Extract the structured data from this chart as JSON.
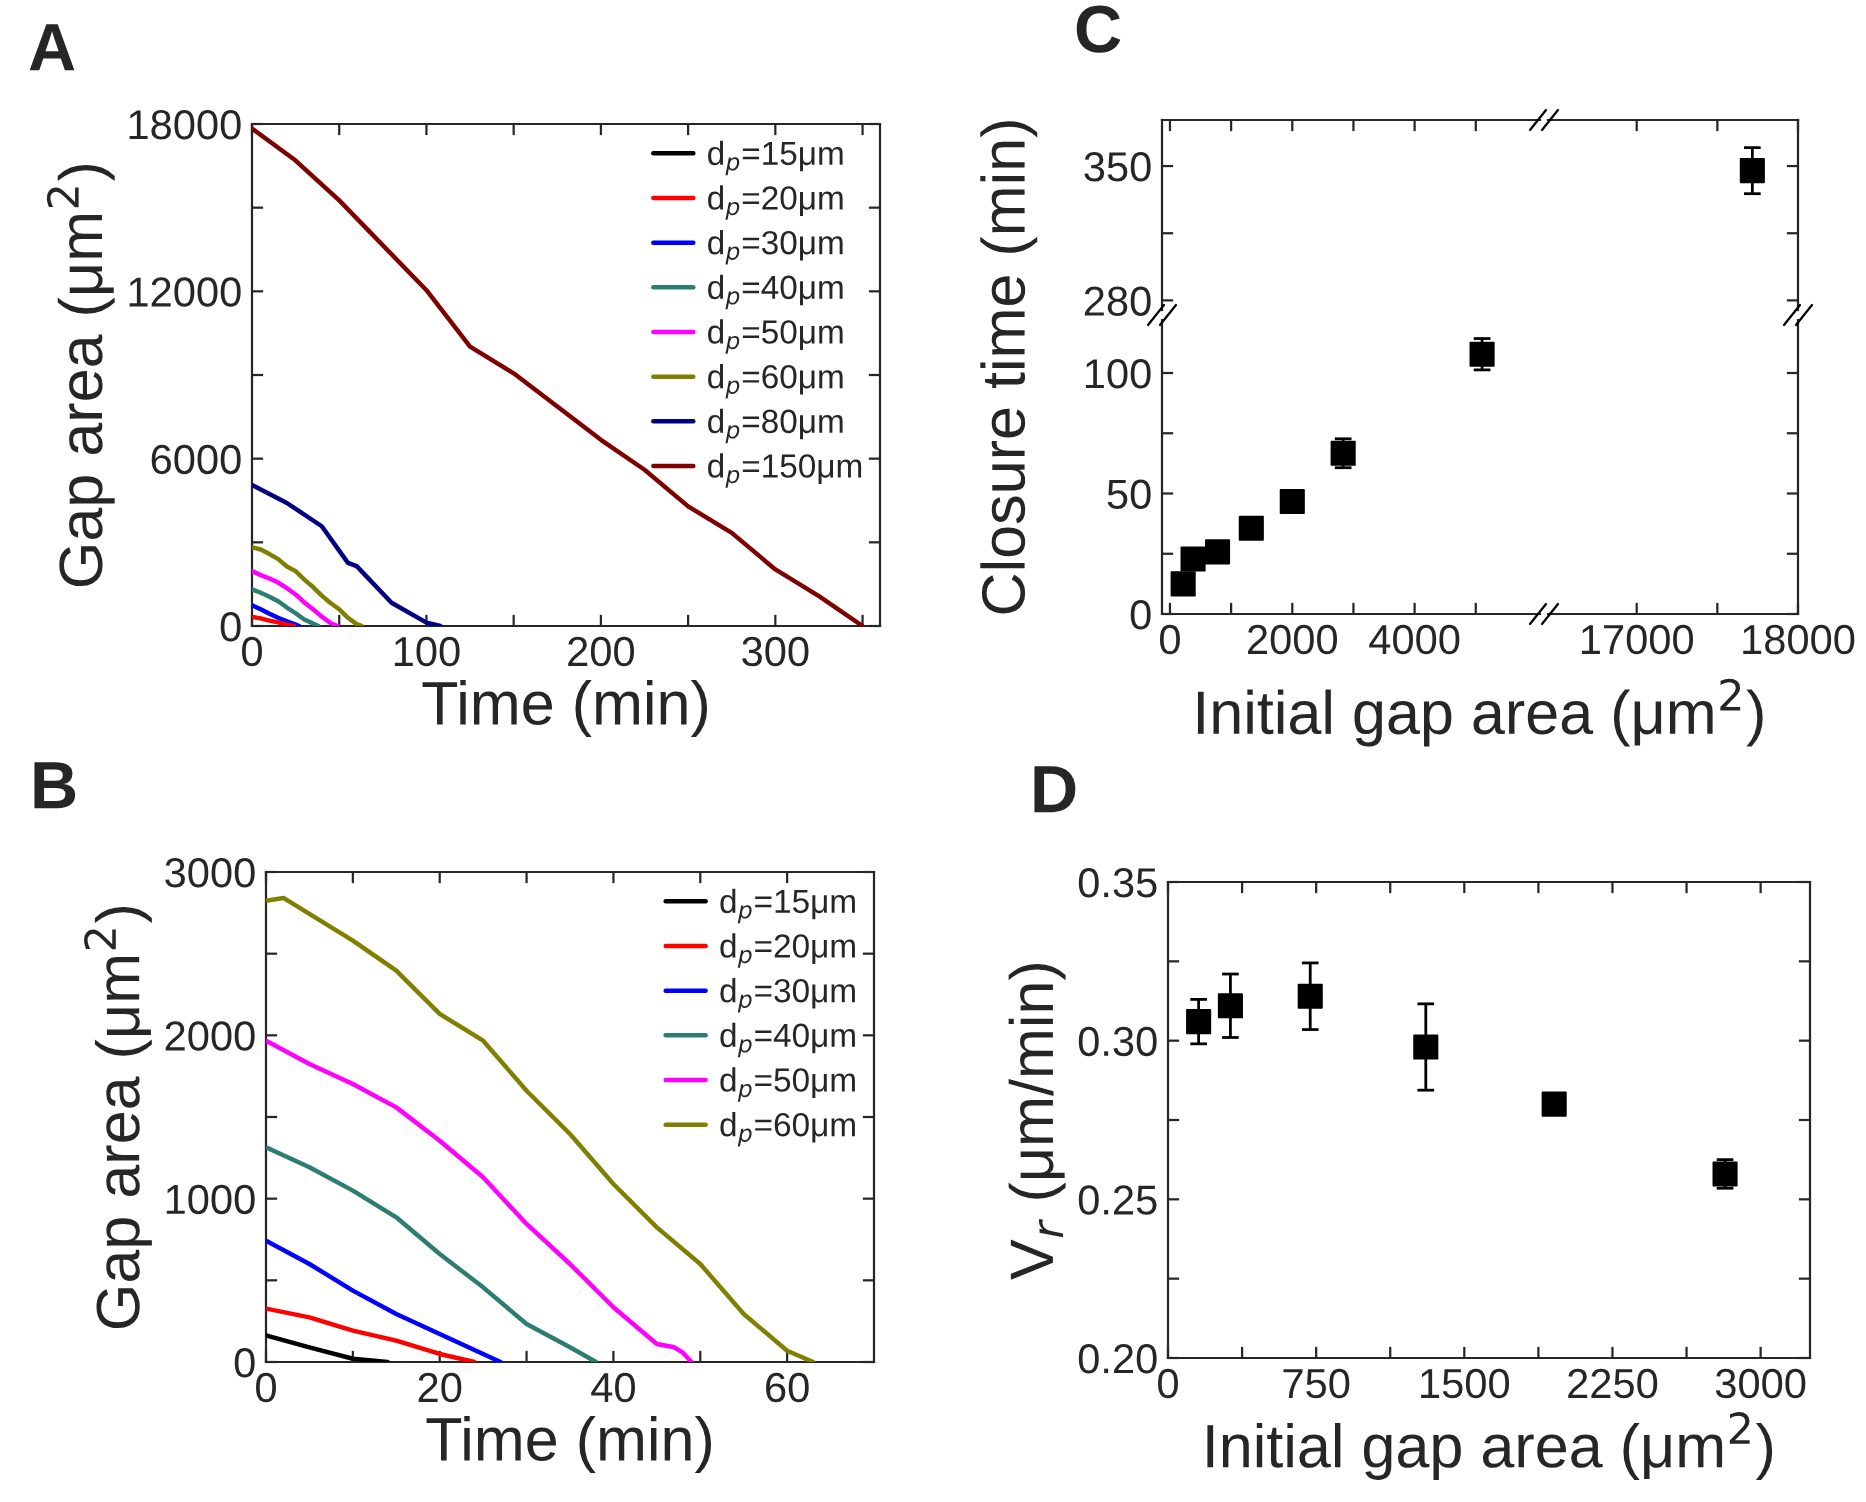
{
  "chart_data": [
    {
      "type": "line",
      "title": "A",
      "xlabel": "Time (min)",
      "ylabel": "Gap area (μm$^{2}$)",
      "xlim": [
        0,
        360
      ],
      "xticks": [
        0,
        {
          "value": 50,
          "label": null
        },
        100,
        {
          "value": 150,
          "label": null
        },
        200,
        {
          "value": 250,
          "label": null
        },
        300,
        {
          "value": 350,
          "label": null
        }
      ],
      "ylim": [
        0,
        18000
      ],
      "yticks": [
        0,
        {
          "value": 3000,
          "label": null
        },
        6000,
        {
          "value": 9000,
          "label": null
        },
        12000,
        {
          "value": 15000,
          "label": null
        },
        18000
      ],
      "legend": "top right",
      "grid": false,
      "marker": "none",
      "line_style": "solid",
      "series": [
        {
          "name": "d$_{p}$=15μm",
          "color": "#000000"
        },
        {
          "name": "d$_{p}$=20μm",
          "color": "#ff0000",
          "x": [
            0,
            5,
            10,
            15,
            20,
            24
          ],
          "values": [
            327,
            273,
            192,
            131,
            49,
            0
          ]
        },
        {
          "name": "d$_{p}$=30μm",
          "color": "#0000ff",
          "x": [
            0,
            5,
            10,
            15,
            20,
            25,
            27
          ],
          "values": [
            743,
            600,
            437,
            294,
            171,
            49,
            0
          ]
        },
        {
          "name": "d$_{p}$=40μm",
          "color": "#2e7d73",
          "x": [
            0,
            5,
            10,
            15,
            20,
            25,
            30,
            35,
            38
          ],
          "values": [
            1314,
            1192,
            1049,
            886,
            661,
            457,
            233,
            90,
            0
          ]
        },
        {
          "name": "d$_{p}$=50μm",
          "color": "#ff00ff",
          "x": [
            0,
            5,
            10,
            15,
            20,
            25,
            30,
            35,
            40,
            45,
            49
          ],
          "values": [
            1967,
            1824,
            1702,
            1559,
            1355,
            1131,
            845,
            600,
            335,
            110,
            0
          ]
        },
        {
          "name": "d$_{p}$=60μm",
          "color": "#808000",
          "x": [
            0,
            5,
            10,
            15,
            20,
            25,
            30,
            35,
            40,
            45,
            50,
            55,
            60,
            63
          ],
          "values": [
            2824,
            2743,
            2580,
            2396,
            2131,
            1967,
            1661,
            1396,
            1090,
            824,
            600,
            294,
            69,
            0
          ]
        },
        {
          "name": "d$_{p}$=80μm",
          "color": "#000080",
          "x": [
            0,
            20,
            40,
            55,
            60,
            80,
            100,
            108
          ],
          "values": [
            5055,
            4411,
            3576,
            2265,
            2146,
            835,
            119,
            0
          ]
        },
        {
          "name": "d$_{p}$=150μm",
          "color": "#800000",
          "x": [
            0,
            25,
            50,
            100,
            125,
            150,
            175,
            200,
            225,
            250,
            275,
            300,
            325,
            350
          ],
          "values": [
            17835,
            16690,
            15260,
            12040,
            10014,
            9060,
            7868,
            6676,
            5603,
            4290,
            3338,
            2027,
            1073,
            0
          ]
        }
      ]
    },
    {
      "type": "scatter",
      "title": "C",
      "xlim": [
        -130,
        6050
      ],
      "xticks": [
        0,
        {
          "value": 1000,
          "label": null
        },
        2000,
        {
          "value": 3000,
          "label": null
        },
        4000,
        {
          "value": 5000,
          "label": null
        }
      ],
      "ylim": [
        275,
        374
      ],
      "yticks": [
        280,
        {
          "value": 315,
          "label": null
        },
        350
      ],
      "tick_labels": "y",
      "marker": "square",
      "grid": false
    },
    {
      "type": "scatter",
      "xlim": [
        16450,
        18000
      ],
      "xticks": [
        17000,
        {
          "value": 17500,
          "label": null
        },
        18000
      ],
      "ylim": [
        275,
        374
      ],
      "yticks": [
        280,
        {
          "value": 315,
          "label": null
        },
        350
      ],
      "tick_labels": false,
      "marker": "square",
      "grid": false,
      "x": [
        17717
      ],
      "values": [
        347.6
      ],
      "errors": [
        12
      ],
      "color": "#000000"
    },
    {
      "type": "scatter",
      "xlabel": "Initial gap area (μm$^{2}$)",
      "ylabel": "Closure time (min)",
      "xlim": [
        -130,
        6050
      ],
      "xticks": [
        0,
        {
          "value": 1000,
          "label": null
        },
        2000,
        {
          "value": 3000,
          "label": null
        },
        4000,
        {
          "value": 5000,
          "label": null
        }
      ],
      "ylim": [
        0,
        122
      ],
      "yticks": [
        0,
        {
          "value": 25,
          "label": null
        },
        50,
        {
          "value": 75,
          "label": null
        },
        100
      ],
      "marker": "square",
      "grid": false,
      "x": [
        216,
        378,
        778,
        1330,
        2000,
        2832,
        5103
      ],
      "values": [
        12.5,
        22.8,
        25.8,
        35.6,
        46.7,
        66.7,
        107.8
      ],
      "errors": [
        null,
        null,
        null,
        null,
        null,
        6,
        6.5
      ],
      "color": "#000000"
    },
    {
      "type": "scatter",
      "xlim": [
        16450,
        18000
      ],
      "xticks": [
        17000,
        {
          "value": 17500,
          "label": null
        },
        18000
      ],
      "ylim": [
        0,
        122
      ],
      "yticks": [
        0,
        {
          "value": 25,
          "label": null
        },
        50,
        {
          "value": 75,
          "label": null
        },
        100
      ],
      "tick_labels": "x",
      "marker": "square",
      "grid": false
    },
    {
      "type": "line",
      "title": "B",
      "xlabel": "Time (min)",
      "ylabel": "Gap area (μm$^{2}$)",
      "xlim": [
        0,
        70
      ],
      "xticks": [
        0,
        {
          "value": 10,
          "label": null
        },
        20,
        {
          "value": 30,
          "label": null
        },
        40,
        {
          "value": 50,
          "label": null
        },
        60
      ],
      "ylim": [
        0,
        3000
      ],
      "yticks": [
        0,
        {
          "value": 500,
          "label": null
        },
        1000,
        {
          "value": 1500,
          "label": null
        },
        2000,
        {
          "value": 2500,
          "label": null
        },
        3000
      ],
      "legend": "top right",
      "grid": false,
      "marker": "none",
      "line_style": "solid",
      "series": [
        {
          "name": "d$_{p}$=15μm",
          "color": "#000000",
          "x": [
            0,
            5,
            10,
            14
          ],
          "values": [
            163,
            90,
            20,
            0
          ]
        },
        {
          "name": "d$_{p}$=20μm",
          "color": "#ff0000",
          "x": [
            0,
            5,
            10,
            15,
            20,
            24
          ],
          "values": [
            327,
            273,
            192,
            131,
            49,
            0
          ]
        },
        {
          "name": "d$_{p}$=30μm",
          "color": "#0000ff",
          "x": [
            0,
            5,
            10,
            15,
            20,
            25,
            27
          ],
          "values": [
            743,
            600,
            437,
            294,
            171,
            49,
            0
          ]
        },
        {
          "name": "d$_{p}$=40μm",
          "color": "#2e7d73",
          "x": [
            0,
            5,
            10,
            15,
            20,
            25,
            30,
            35,
            38
          ],
          "values": [
            1314,
            1192,
            1049,
            886,
            661,
            457,
            233,
            90,
            0
          ]
        },
        {
          "name": "d$_{p}$=50μm",
          "color": "#ff00ff",
          "x": [
            0,
            5,
            10,
            15,
            20,
            25,
            30,
            35,
            40,
            45,
            47,
            48,
            49
          ],
          "values": [
            1967,
            1824,
            1702,
            1559,
            1355,
            1131,
            845,
            600,
            335,
            110,
            90,
            57,
            0
          ]
        },
        {
          "name": "d$_{p}$=60μm",
          "color": "#808000",
          "x": [
            0,
            2,
            5,
            10,
            15,
            20,
            25,
            30,
            35,
            40,
            45,
            50,
            55,
            60,
            63
          ],
          "values": [
            2824,
            2841,
            2743,
            2580,
            2396,
            2131,
            1967,
            1661,
            1396,
            1090,
            824,
            600,
            294,
            69,
            0
          ]
        }
      ]
    },
    {
      "type": "scatter",
      "title": "D",
      "xlabel": "Initial gap area (μm$^{2}$)",
      "ylabel": "V$_{r}$ (μm/min)",
      "xlim": [
        0,
        3250
      ],
      "xticks": [
        0,
        {
          "value": 375,
          "label": null
        },
        750,
        {
          "value": 1125,
          "label": null
        },
        1500,
        {
          "value": 1875,
          "label": null
        },
        2250,
        {
          "value": 2625,
          "label": null
        },
        3000
      ],
      "ylim": [
        0.2,
        0.35
      ],
      "yticks": [
        {
          "value": 0.2,
          "label": "0.20"
        },
        {
          "value": 0.225,
          "label": null
        },
        {
          "value": 0.25,
          "label": "0.25"
        },
        {
          "value": 0.275,
          "label": null
        },
        {
          "value": 0.3,
          "label": "0.30"
        },
        {
          "value": 0.325,
          "label": null
        },
        {
          "value": 0.35,
          "label": "0.35"
        }
      ],
      "marker": "square",
      "grid": false,
      "x": [
        155,
        316,
        720,
        1305,
        1955,
        2820
      ],
      "values": [
        0.306,
        0.311,
        0.314,
        0.298,
        0.28,
        0.258
      ],
      "errors": [
        0.007,
        0.01,
        0.0105,
        0.0136,
        null,
        0.0045
      ],
      "color": "#000000"
    }
  ]
}
